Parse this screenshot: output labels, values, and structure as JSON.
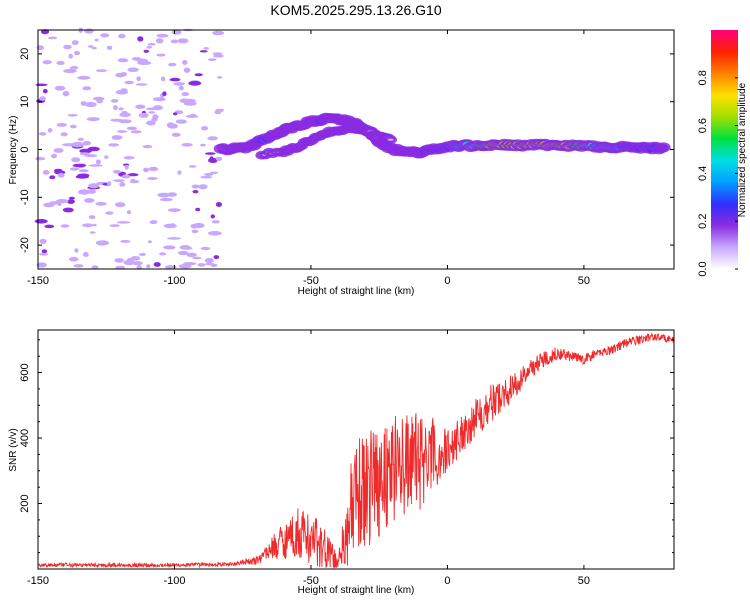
{
  "title": "KOM5.2025.295.13.26.G10",
  "chart_data": [
    {
      "type": "heatmap",
      "name": "spectrogram",
      "xlabel": "Height of straight line (km)",
      "ylabel": "Frequency (Hz)",
      "xlim": [
        -150,
        83
      ],
      "ylim": [
        -25,
        25
      ],
      "xticks": [
        -150,
        -100,
        -50,
        0,
        50
      ],
      "yticks": [
        20,
        10,
        0,
        -10,
        -20
      ],
      "xtick_labels": [
        "-150",
        "-100",
        "-50",
        "0",
        "50"
      ],
      "ytick_labels": [
        "20",
        "10",
        "0",
        "-10",
        "-20"
      ],
      "colorbar": {
        "label": "Normalized spectral amplitude",
        "range": [
          0,
          1
        ],
        "ticks": [
          0.0,
          0.2,
          0.4,
          0.6,
          0.8
        ],
        "tick_labels": [
          "0.0",
          "0.2",
          "0.4",
          "0.6",
          "0.8"
        ],
        "colors": [
          "#ffffff",
          "#c8a8ff",
          "#8a2be2",
          "#3030ff",
          "#00a0ff",
          "#00e0e0",
          "#00e040",
          "#a0e000",
          "#ffe000",
          "#ff8000",
          "#ff2000",
          "#ff0080"
        ]
      },
      "ridge": [
        {
          "x": -83,
          "y": 0.0,
          "amp": 0.06
        },
        {
          "x": -78,
          "y": 0.2,
          "amp": 0.18
        },
        {
          "x": -72,
          "y": 0.6,
          "amp": 0.2
        },
        {
          "x": -68,
          "y": 2.0,
          "amp": 0.22
        },
        {
          "x": -62,
          "y": 3.5,
          "amp": 0.2
        },
        {
          "x": -58,
          "y": 4.5,
          "amp": 0.16
        },
        {
          "x": -52,
          "y": 5.5,
          "amp": 0.16
        },
        {
          "x": -47,
          "y": 6.2,
          "amp": 0.22
        },
        {
          "x": -42,
          "y": 6.5,
          "amp": 0.2
        },
        {
          "x": -37,
          "y": 6.0,
          "amp": 0.2
        },
        {
          "x": -33,
          "y": 5.2,
          "amp": 0.18
        },
        {
          "x": -28,
          "y": 3.5,
          "amp": 0.12
        },
        {
          "x": -25,
          "y": 1.5,
          "amp": 0.14
        },
        {
          "x": -20,
          "y": 0.0,
          "amp": 0.16
        },
        {
          "x": -15,
          "y": -0.5,
          "amp": 0.18
        },
        {
          "x": -10,
          "y": -0.6,
          "amp": 0.2
        },
        {
          "x": -5,
          "y": 0.0,
          "amp": 0.24
        },
        {
          "x": 0,
          "y": 0.6,
          "amp": 0.3
        },
        {
          "x": 5,
          "y": 0.8,
          "amp": 0.45
        },
        {
          "x": 10,
          "y": 0.8,
          "amp": 0.62
        },
        {
          "x": 15,
          "y": 0.9,
          "amp": 0.82
        },
        {
          "x": 20,
          "y": 0.9,
          "amp": 0.92
        },
        {
          "x": 25,
          "y": 0.9,
          "amp": 0.92
        },
        {
          "x": 30,
          "y": 0.9,
          "amp": 0.9
        },
        {
          "x": 35,
          "y": 0.9,
          "amp": 0.86
        },
        {
          "x": 40,
          "y": 0.9,
          "amp": 0.9
        },
        {
          "x": 45,
          "y": 0.8,
          "amp": 0.85
        },
        {
          "x": 50,
          "y": 0.7,
          "amp": 0.7
        },
        {
          "x": 55,
          "y": 0.6,
          "amp": 0.5
        },
        {
          "x": 60,
          "y": 0.5,
          "amp": 0.42
        },
        {
          "x": 65,
          "y": 0.5,
          "amp": 0.35
        },
        {
          "x": 70,
          "y": 0.4,
          "amp": 0.3
        },
        {
          "x": 75,
          "y": 0.3,
          "amp": 0.24
        },
        {
          "x": 80,
          "y": 0.2,
          "amp": 0.2
        }
      ],
      "secondary_ridge": [
        {
          "x": -68,
          "y": -1.0,
          "amp": 0.1
        },
        {
          "x": -60,
          "y": -0.5,
          "amp": 0.14
        },
        {
          "x": -55,
          "y": 0.5,
          "amp": 0.16
        },
        {
          "x": -50,
          "y": 2.0,
          "amp": 0.14
        },
        {
          "x": -45,
          "y": 3.5,
          "amp": 0.16
        },
        {
          "x": -40,
          "y": 4.0,
          "amp": 0.18
        },
        {
          "x": -35,
          "y": 4.5,
          "amp": 0.14
        },
        {
          "x": -30,
          "y": 4.0,
          "amp": 0.12
        },
        {
          "x": -25,
          "y": 3.0,
          "amp": 0.12
        },
        {
          "x": -20,
          "y": 2.0,
          "amp": 0.1
        }
      ],
      "noise_region": {
        "x_from": -150,
        "x_to": -83,
        "amplitude": "low (0.02-0.08)"
      }
    },
    {
      "type": "line",
      "name": "snr",
      "xlabel": "Height of straight line (km)",
      "ylabel": "SNR (v/v)",
      "xlim": [
        -150,
        83
      ],
      "ylim": [
        0,
        730
      ],
      "xticks": [
        -150,
        -100,
        -50,
        0,
        50
      ],
      "yticks": [
        200,
        400,
        600
      ],
      "xtick_labels": [
        "-150",
        "-100",
        "-50",
        "0",
        "50"
      ],
      "ytick_labels": [
        "200",
        "400",
        "600"
      ],
      "color": "#ee2a2a",
      "series": [
        {
          "name": "SNR",
          "anchors": [
            {
              "x": -150,
              "y": 12,
              "noise": 6
            },
            {
              "x": -120,
              "y": 12,
              "noise": 6
            },
            {
              "x": -100,
              "y": 12,
              "noise": 6
            },
            {
              "x": -80,
              "y": 14,
              "noise": 6
            },
            {
              "x": -70,
              "y": 25,
              "noise": 12
            },
            {
              "x": -65,
              "y": 60,
              "noise": 30
            },
            {
              "x": -60,
              "y": 90,
              "noise": 60
            },
            {
              "x": -55,
              "y": 110,
              "noise": 80
            },
            {
              "x": -50,
              "y": 95,
              "noise": 80
            },
            {
              "x": -45,
              "y": 60,
              "noise": 70
            },
            {
              "x": -40,
              "y": 20,
              "noise": 20
            },
            {
              "x": -35,
              "y": 180,
              "noise": 170
            },
            {
              "x": -30,
              "y": 250,
              "noise": 190
            },
            {
              "x": -25,
              "y": 280,
              "noise": 180
            },
            {
              "x": -20,
              "y": 310,
              "noise": 170
            },
            {
              "x": -15,
              "y": 320,
              "noise": 160
            },
            {
              "x": -10,
              "y": 330,
              "noise": 150
            },
            {
              "x": -5,
              "y": 340,
              "noise": 120
            },
            {
              "x": 0,
              "y": 360,
              "noise": 70
            },
            {
              "x": 5,
              "y": 410,
              "noise": 60
            },
            {
              "x": 10,
              "y": 460,
              "noise": 60
            },
            {
              "x": 15,
              "y": 500,
              "noise": 60
            },
            {
              "x": 20,
              "y": 530,
              "noise": 50
            },
            {
              "x": 25,
              "y": 560,
              "noise": 40
            },
            {
              "x": 30,
              "y": 610,
              "noise": 30
            },
            {
              "x": 35,
              "y": 640,
              "noise": 25
            },
            {
              "x": 40,
              "y": 660,
              "noise": 20
            },
            {
              "x": 45,
              "y": 650,
              "noise": 15
            },
            {
              "x": 50,
              "y": 640,
              "noise": 15
            },
            {
              "x": 55,
              "y": 660,
              "noise": 15
            },
            {
              "x": 60,
              "y": 670,
              "noise": 15
            },
            {
              "x": 65,
              "y": 690,
              "noise": 15
            },
            {
              "x": 70,
              "y": 700,
              "noise": 15
            },
            {
              "x": 75,
              "y": 710,
              "noise": 12
            },
            {
              "x": 80,
              "y": 705,
              "noise": 12
            },
            {
              "x": 83,
              "y": 700,
              "noise": 10
            }
          ]
        }
      ]
    }
  ]
}
